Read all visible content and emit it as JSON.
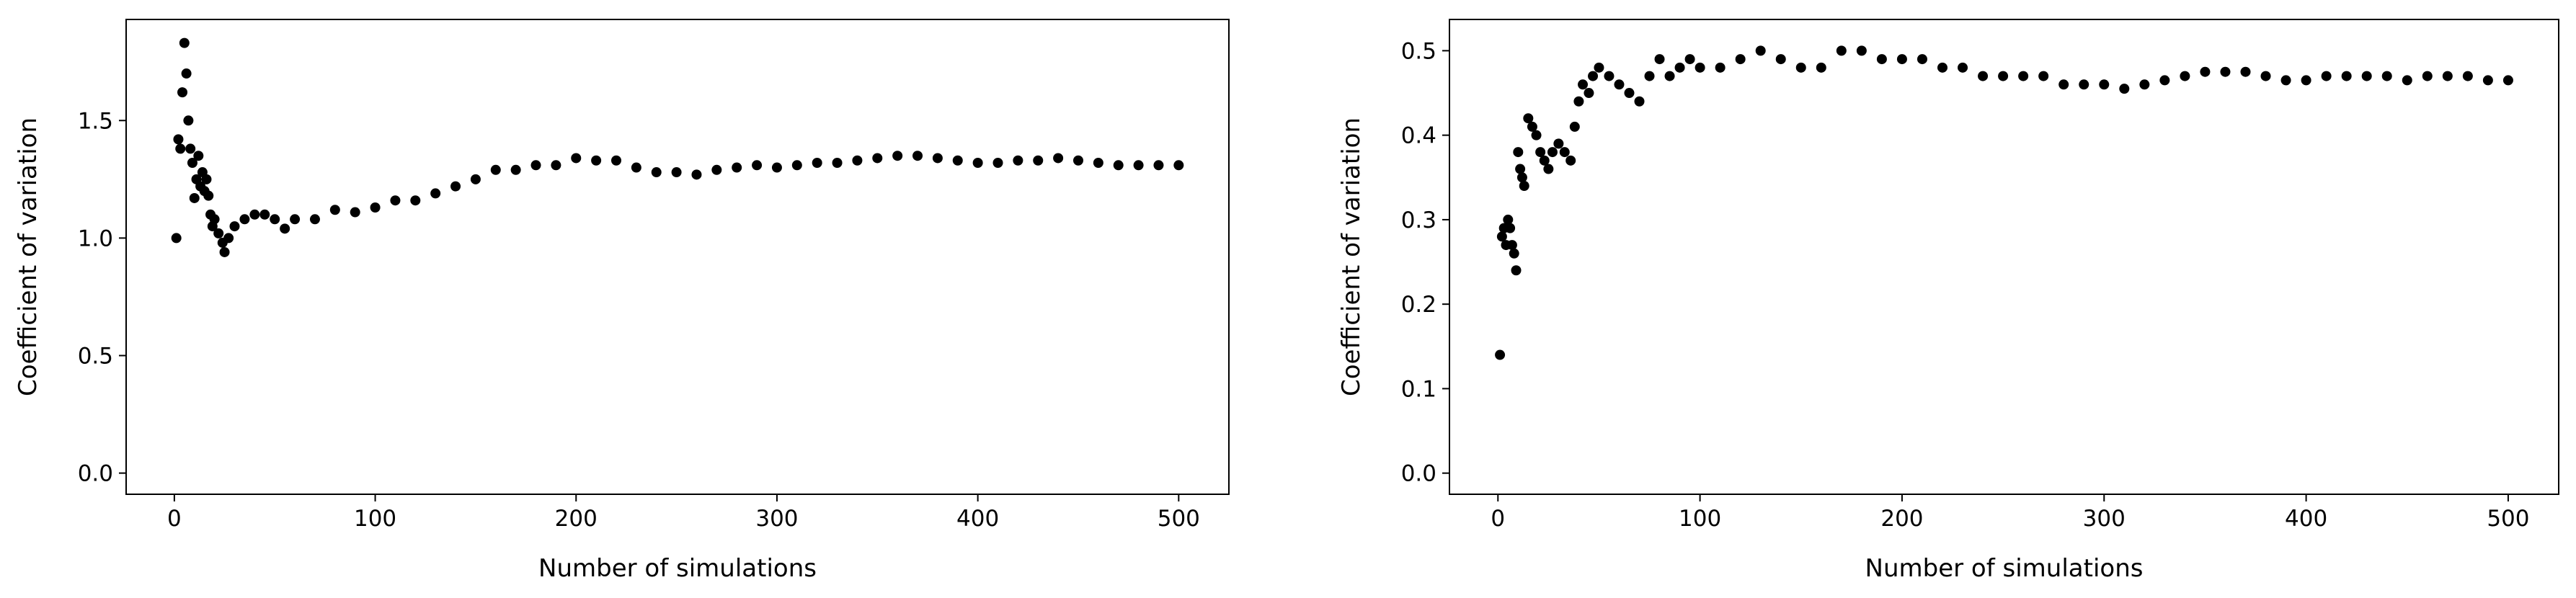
{
  "chart_data": [
    {
      "type": "scatter",
      "xlabel": "Number of simulations",
      "ylabel": "Coefficient of variation",
      "color": "#000000",
      "x": [
        1,
        2,
        3,
        4,
        5,
        6,
        7,
        8,
        9,
        10,
        11,
        12,
        13,
        14,
        15,
        16,
        17,
        18,
        19,
        20,
        22,
        24,
        25,
        27,
        30,
        35,
        40,
        45,
        50,
        55,
        60,
        70,
        80,
        90,
        100,
        110,
        120,
        130,
        140,
        150,
        160,
        170,
        180,
        190,
        200,
        210,
        220,
        230,
        240,
        250,
        260,
        270,
        280,
        290,
        300,
        310,
        320,
        330,
        340,
        350,
        360,
        370,
        380,
        390,
        400,
        410,
        420,
        430,
        440,
        450,
        460,
        470,
        480,
        490,
        500
      ],
      "values": [
        1.0,
        1.42,
        1.38,
        1.62,
        1.83,
        1.7,
        1.5,
        1.38,
        1.32,
        1.17,
        1.25,
        1.35,
        1.22,
        1.28,
        1.2,
        1.25,
        1.18,
        1.1,
        1.05,
        1.08,
        1.02,
        0.98,
        0.94,
        1.0,
        1.05,
        1.08,
        1.1,
        1.1,
        1.08,
        1.04,
        1.08,
        1.08,
        1.12,
        1.11,
        1.13,
        1.16,
        1.16,
        1.19,
        1.22,
        1.25,
        1.29,
        1.29,
        1.31,
        1.31,
        1.34,
        1.33,
        1.33,
        1.3,
        1.28,
        1.28,
        1.27,
        1.29,
        1.3,
        1.31,
        1.3,
        1.31,
        1.32,
        1.32,
        1.33,
        1.34,
        1.35,
        1.35,
        1.34,
        1.33,
        1.32,
        1.32,
        1.33,
        1.33,
        1.34,
        1.33,
        1.32,
        1.31,
        1.31,
        1.31,
        1.31
      ],
      "xlim": [
        -24,
        525
      ],
      "ylim": [
        -0.09,
        1.93
      ],
      "xticks": [
        0,
        100,
        200,
        300,
        400,
        500
      ],
      "yticks": [
        {
          "value": 0,
          "label": "0.0"
        },
        {
          "value": 0.5,
          "label": "0.5"
        },
        {
          "value": 1,
          "label": "1.0"
        },
        {
          "value": 1.5,
          "label": "1.5"
        }
      ]
    },
    {
      "type": "scatter",
      "xlabel": "Number of simulations",
      "ylabel": "Coefficient of variation",
      "color": "#000000",
      "x": [
        1,
        2,
        3,
        4,
        5,
        6,
        7,
        8,
        9,
        10,
        11,
        12,
        13,
        15,
        17,
        19,
        21,
        23,
        25,
        27,
        30,
        33,
        36,
        38,
        40,
        42,
        45,
        47,
        50,
        55,
        60,
        65,
        70,
        75,
        80,
        85,
        90,
        95,
        100,
        110,
        120,
        130,
        140,
        150,
        160,
        170,
        180,
        190,
        200,
        210,
        220,
        230,
        240,
        250,
        260,
        270,
        280,
        290,
        300,
        310,
        320,
        330,
        340,
        350,
        360,
        370,
        380,
        390,
        400,
        410,
        420,
        430,
        440,
        450,
        460,
        470,
        480,
        490,
        500
      ],
      "values": [
        0.14,
        0.28,
        0.29,
        0.27,
        0.3,
        0.29,
        0.27,
        0.26,
        0.24,
        0.38,
        0.36,
        0.35,
        0.34,
        0.42,
        0.41,
        0.4,
        0.38,
        0.37,
        0.36,
        0.38,
        0.39,
        0.38,
        0.37,
        0.41,
        0.44,
        0.46,
        0.45,
        0.47,
        0.48,
        0.47,
        0.46,
        0.45,
        0.44,
        0.47,
        0.49,
        0.47,
        0.48,
        0.49,
        0.48,
        0.48,
        0.49,
        0.5,
        0.49,
        0.48,
        0.48,
        0.5,
        0.5,
        0.49,
        0.49,
        0.49,
        0.48,
        0.48,
        0.47,
        0.47,
        0.47,
        0.47,
        0.46,
        0.46,
        0.46,
        0.455,
        0.46,
        0.465,
        0.47,
        0.475,
        0.475,
        0.475,
        0.47,
        0.465,
        0.465,
        0.47,
        0.47,
        0.47,
        0.47,
        0.465,
        0.47,
        0.47,
        0.47,
        0.465,
        0.465
      ],
      "xlim": [
        -24,
        525
      ],
      "ylim": [
        -0.025,
        0.537
      ],
      "xticks": [
        0,
        100,
        200,
        300,
        400,
        500
      ],
      "yticks": [
        {
          "value": 0,
          "label": "0.0"
        },
        {
          "value": 0.1,
          "label": "0.1"
        },
        {
          "value": 0.2,
          "label": "0.2"
        },
        {
          "value": 0.3,
          "label": "0.3"
        },
        {
          "value": 0.4,
          "label": "0.4"
        },
        {
          "value": 0.5,
          "label": "0.5"
        }
      ]
    }
  ]
}
